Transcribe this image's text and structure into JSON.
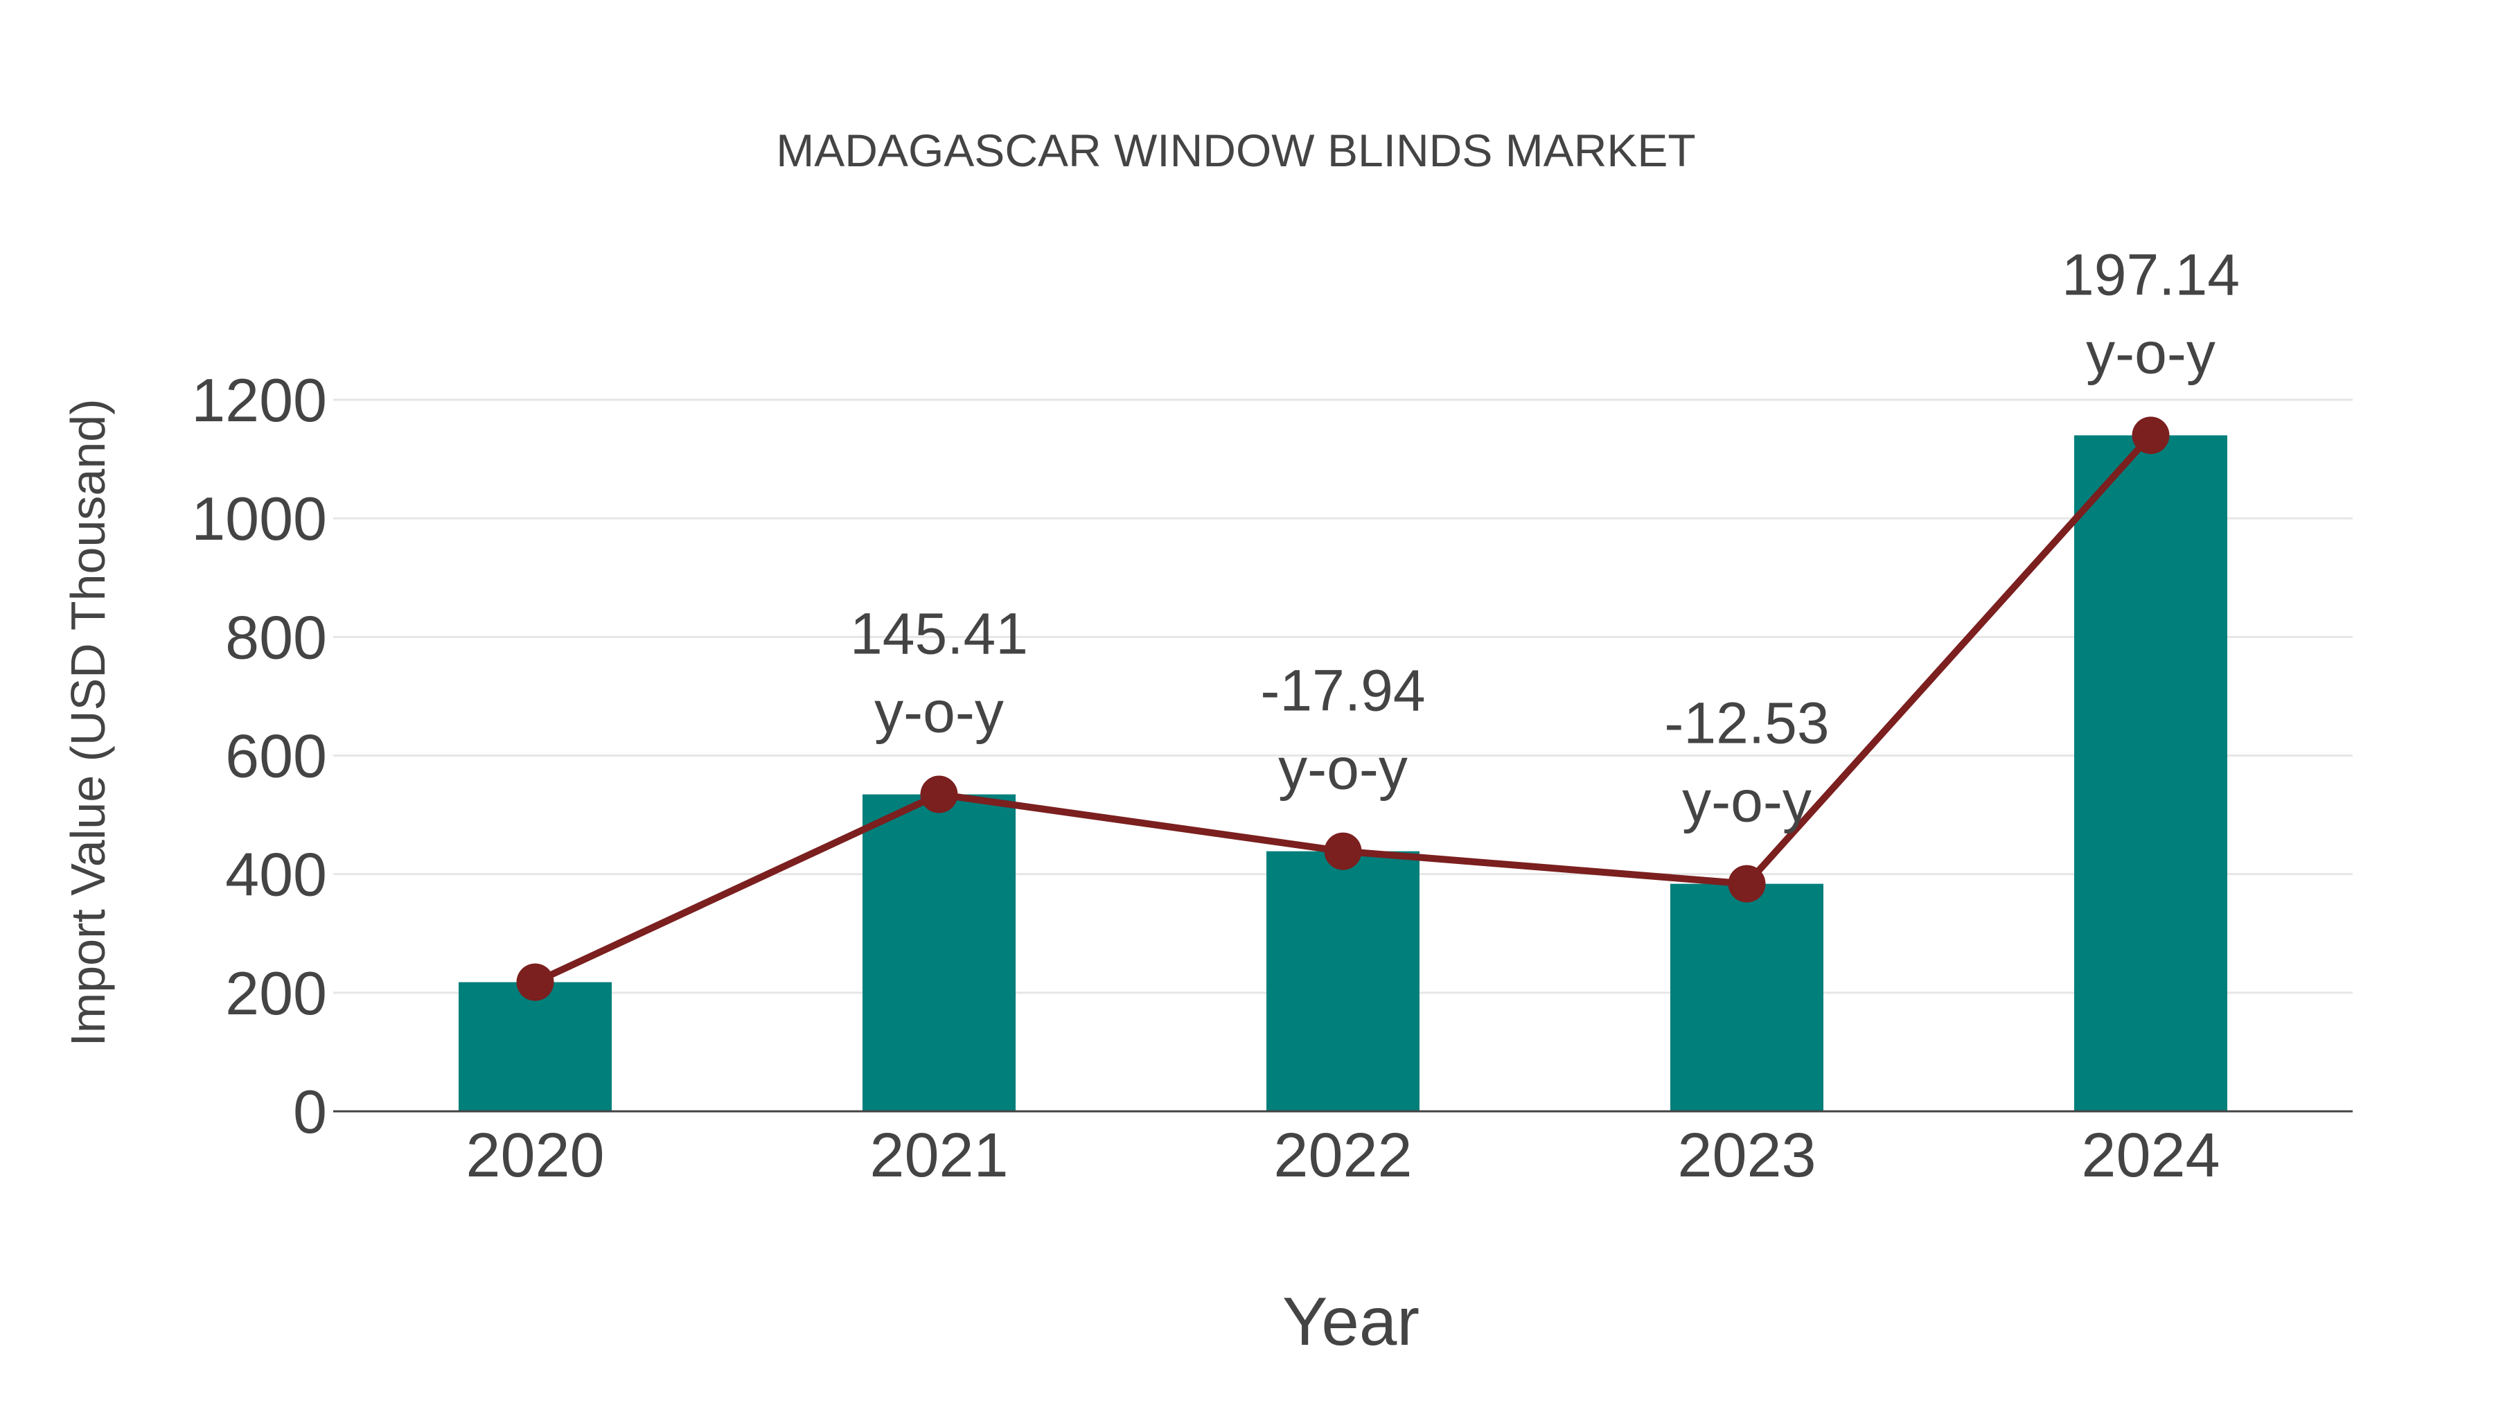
{
  "chart_data": {
    "type": "bar",
    "title": "MADAGASCAR WINDOW BLINDS MARKET",
    "xlabel": "Year",
    "ylabel": "Import Value (USD Thousand)",
    "categories": [
      "2020",
      "2021",
      "2022",
      "2023",
      "2024"
    ],
    "series": [
      {
        "name": "Import Value",
        "type": "bar",
        "color": "#007f7b",
        "values": [
          217.8,
          534.5,
          438.6,
          383.7,
          1140.0
        ]
      },
      {
        "name": "Import Value Trend",
        "type": "line",
        "color": "#7b1f1f",
        "values": [
          217.8,
          534.5,
          438.6,
          383.7,
          1140.0
        ]
      }
    ],
    "annotations": [
      {
        "category": "2020",
        "text": "",
        "suffix": ""
      },
      {
        "category": "2021",
        "text": "145.41",
        "suffix": "y-o-y"
      },
      {
        "category": "2022",
        "text": "-17.94",
        "suffix": "y-o-y"
      },
      {
        "category": "2023",
        "text": "-12.53",
        "suffix": "y-o-y"
      },
      {
        "category": "2024",
        "text": "197.14",
        "suffix": "y-o-y"
      }
    ],
    "yticks": [
      0,
      200,
      400,
      600,
      800,
      1000,
      1200
    ],
    "ylim": [
      0,
      1200
    ],
    "grid": true,
    "legend": "none"
  },
  "colors": {
    "bar": "#007f7b",
    "line": "#7b1f1f",
    "text": "#444444",
    "grid": "#e6e6e6",
    "axis": "#444444"
  }
}
